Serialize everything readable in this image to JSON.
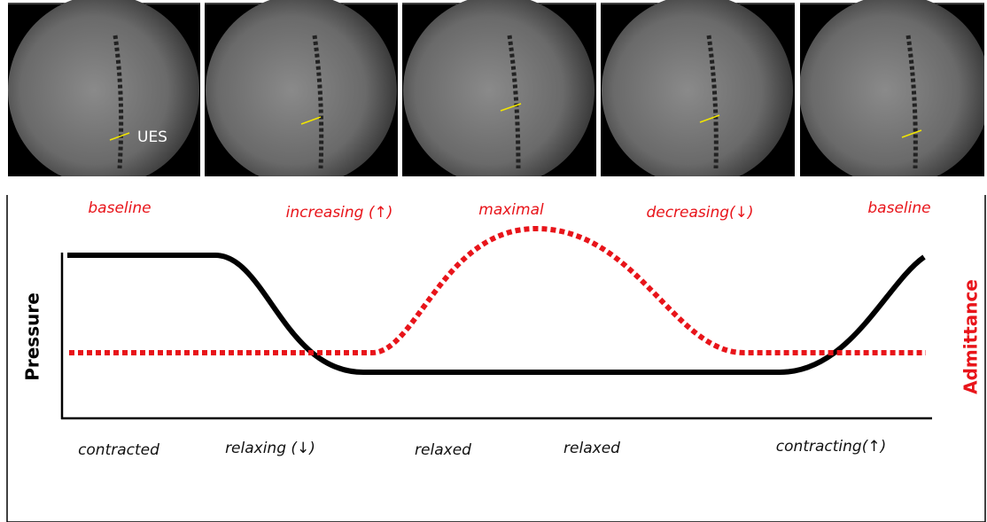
{
  "panels": {
    "ues_label": "UES"
  },
  "admittance_states": [
    "baseline",
    "increasing (↑)",
    "maximal",
    "decreasing(↓)",
    "baseline"
  ],
  "axes": {
    "left": "Pressure",
    "right": "Admittance"
  },
  "pressure_states": [
    "contracted",
    "relaxing (↓)",
    "relaxed",
    "relaxed",
    "contracting(↑)"
  ]
}
